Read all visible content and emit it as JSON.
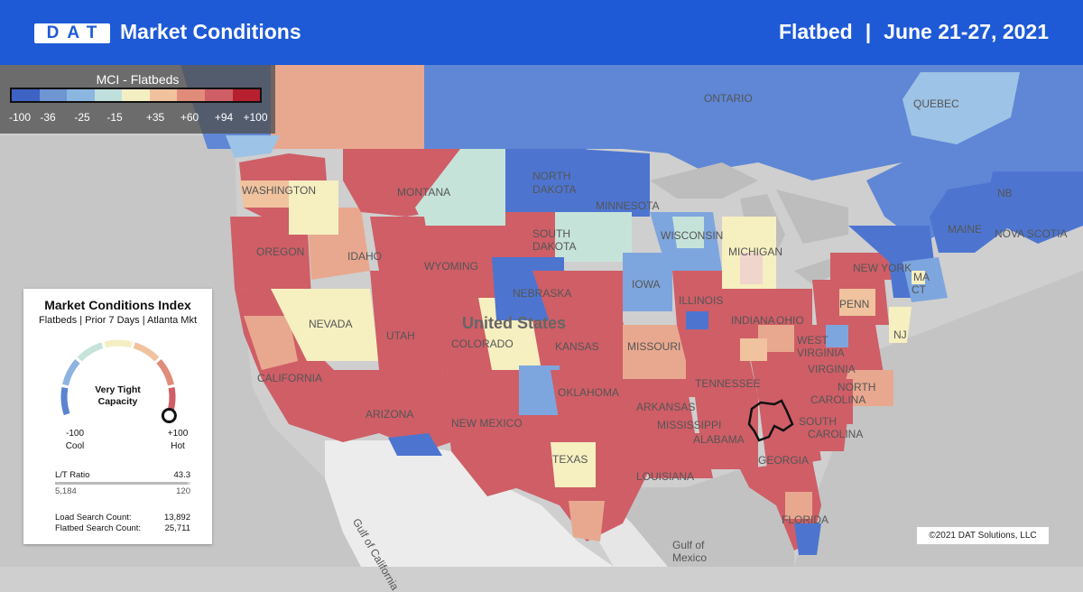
{
  "header": {
    "logo": "DAT",
    "title": "Market Conditions",
    "equipment": "Flatbed",
    "separator": "|",
    "date_range": "June 21-27, 2021",
    "background": "#1e5ad6"
  },
  "legend": {
    "title": "MCI - Flatbeds",
    "colors": [
      "#3e63c4",
      "#6f95d3",
      "#8bb6e0",
      "#bfe0dc",
      "#f4efc3",
      "#f0c39e",
      "#e18b7a",
      "#cf5e66",
      "#b7202f"
    ],
    "ticks": [
      "-100",
      "-36",
      "-25",
      "-15",
      "+35",
      "+60",
      "+94",
      "+100"
    ]
  },
  "index_card": {
    "title": "Market Conditions Index",
    "subtitle": "Flatbeds | Prior 7 Days | Atlanta Mkt",
    "status_line1": "Very Tight",
    "status_line2": "Capacity",
    "min_value": "-100",
    "max_value": "+100",
    "min_label": "Cool",
    "max_label": "Hot",
    "gauge_value": 100,
    "lt_ratio_label": "L/T Ratio",
    "lt_ratio_value": "43.3",
    "loads": "5,184",
    "trucks": "120",
    "load_search_label": "Load Search Count:",
    "load_search_value": "13,892",
    "flatbed_search_label": "Flatbed Search Count:",
    "flatbed_search_value": "25,711"
  },
  "map": {
    "labels": {
      "ontario": "ONTARIO",
      "quebec": "QUEBEC",
      "nb": "NB",
      "nova_scotia": "NOVA SCOTIA",
      "maine": "MAINE",
      "new_york": "NEW YORK",
      "washington": "WASHINGTON",
      "montana": "MONTANA",
      "north_dakota_1": "NORTH",
      "north_dakota_2": "DAKOTA",
      "minnesota": "MINNESOTA",
      "south_dakota_1": "SOUTH",
      "south_dakota_2": "DAKOTA",
      "wisconsin": "WISCONSIN",
      "michigan": "MICHIGAN",
      "oregon": "OREGON",
      "idaho": "IDAHO",
      "wyoming": "WYOMING",
      "iowa": "IOWA",
      "nebraska": "NEBRASKA",
      "united_states": "United States",
      "nevada": "NEVADA",
      "utah": "UTAH",
      "colorado": "COLORADO",
      "kansas": "KANSAS",
      "missouri": "MISSOURI",
      "illinois": "ILLINOIS",
      "indiana": "INDIANA",
      "ohio": "OHIO",
      "penn": "PENN",
      "nj": "NJ",
      "ct": "CT",
      "ma": "MA",
      "west_virginia_1": "WEST",
      "west_virginia_2": "VIRGINIA",
      "virginia": "VIRGINIA",
      "california": "CALIFORNIA",
      "arizona": "ARIZONA",
      "new_mexico": "NEW MEXICO",
      "oklahoma": "OKLAHOMA",
      "tennessee": "TENNESSEE",
      "north_carolina_1": "NORTH",
      "north_carolina_2": "CAROLINA",
      "arkansas": "ARKANSAS",
      "mississippi": "MISSISSIPPI",
      "alabama": "ALABAMA",
      "south_carolina_1": "SOUTH",
      "south_carolina_2": "CAROLINA",
      "georgia": "GEORGIA",
      "texas": "TEXAS",
      "louisiana": "LOUISIANA",
      "florida": "FLORIDA",
      "gulf_of_california": "Gulf of California",
      "gulf_of_mexico_1": "Gulf of",
      "gulf_of_mexico_2": "Mexico"
    },
    "colors": {
      "hot": "#cf5e66",
      "warm": "#e8a88f",
      "neutral": "#f6efc0",
      "cool_teal": "#c6e3da",
      "cool": "#7ea6de",
      "cold": "#4d75d0",
      "canada_blue": "#5f87d6",
      "light_blue": "#9dc3e6",
      "land_gray": "#d4d4d4",
      "water": "#c4c4c4"
    }
  },
  "copyright": "©2021 DAT Solutions, LLC"
}
